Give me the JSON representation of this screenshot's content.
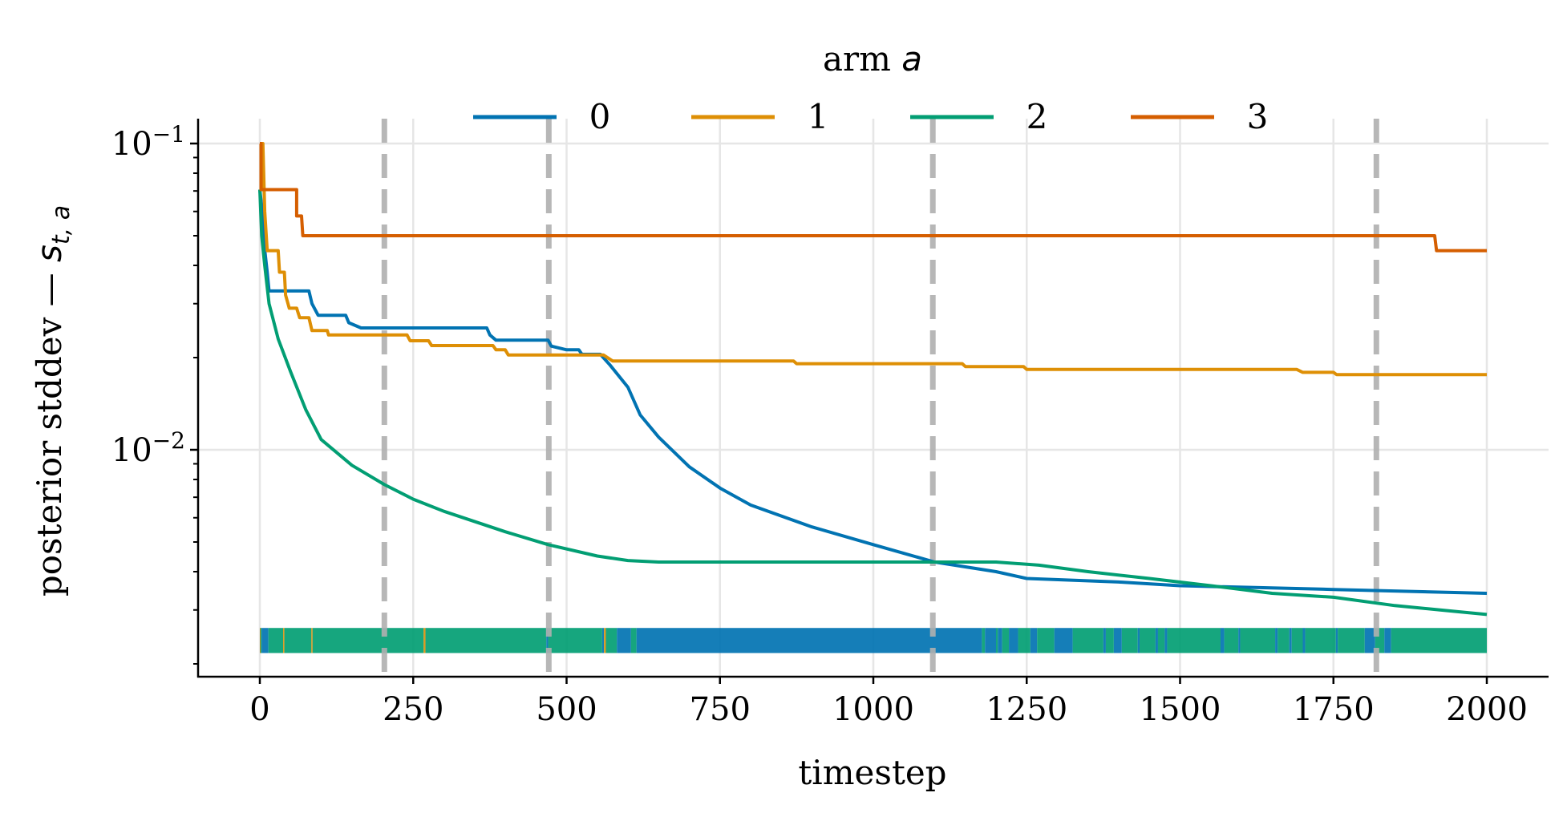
{
  "chart_data": {
    "type": "line",
    "title": "",
    "xlabel": "timestep",
    "ylabel": {
      "text": "posterior stddev — ",
      "symbol": "s",
      "subscript": "t, a"
    },
    "yscale": "log",
    "xlim": [
      -100,
      2100
    ],
    "ylim": [
      0.00183,
      0.12
    ],
    "grid": true,
    "x_ticks": [
      0,
      250,
      500,
      750,
      1000,
      1250,
      1500,
      1750,
      2000
    ],
    "x_tick_labels": [
      "0",
      "250",
      "500",
      "750",
      "1000",
      "1250",
      "1500",
      "1750",
      "2000"
    ],
    "y_ticks": [
      {
        "value": 0.1,
        "base": "10",
        "exp": "−1"
      },
      {
        "value": 0.01,
        "base": "10",
        "exp": "−2"
      }
    ],
    "legend": {
      "title": "arm",
      "title_symbol": "a",
      "placement": "top-center",
      "columns": 4
    },
    "series": [
      {
        "name": "0",
        "color": "#0173b2",
        "points": [
          [
            0,
            0.0707
          ],
          [
            5,
            0.0577
          ],
          [
            8,
            0.045
          ],
          [
            12,
            0.038
          ],
          [
            15,
            0.033
          ],
          [
            80,
            0.033
          ],
          [
            85,
            0.03
          ],
          [
            95,
            0.0275
          ],
          [
            140,
            0.0275
          ],
          [
            145,
            0.026
          ],
          [
            165,
            0.025
          ],
          [
            370,
            0.025
          ],
          [
            375,
            0.0237
          ],
          [
            385,
            0.0228
          ],
          [
            470,
            0.0228
          ],
          [
            475,
            0.0218
          ],
          [
            500,
            0.0212
          ],
          [
            520,
            0.0212
          ],
          [
            525,
            0.0205
          ],
          [
            555,
            0.0205
          ],
          [
            570,
            0.019
          ],
          [
            600,
            0.016
          ],
          [
            620,
            0.013
          ],
          [
            650,
            0.011
          ],
          [
            700,
            0.0088
          ],
          [
            750,
            0.0075
          ],
          [
            800,
            0.0066
          ],
          [
            900,
            0.0056
          ],
          [
            1000,
            0.0049
          ],
          [
            1100,
            0.0043
          ],
          [
            1200,
            0.004
          ],
          [
            1250,
            0.0038
          ],
          [
            1400,
            0.0037
          ],
          [
            1500,
            0.0036
          ],
          [
            1750,
            0.0035
          ],
          [
            2000,
            0.0034
          ]
        ]
      },
      {
        "name": "1",
        "color": "#de8f05",
        "points": [
          [
            0,
            0.1
          ],
          [
            5,
            0.1
          ],
          [
            8,
            0.06
          ],
          [
            12,
            0.0447
          ],
          [
            30,
            0.0447
          ],
          [
            32,
            0.038
          ],
          [
            40,
            0.038
          ],
          [
            42,
            0.032
          ],
          [
            48,
            0.029
          ],
          [
            60,
            0.029
          ],
          [
            65,
            0.027
          ],
          [
            80,
            0.027
          ],
          [
            85,
            0.0245
          ],
          [
            110,
            0.0245
          ],
          [
            112,
            0.0237
          ],
          [
            240,
            0.0237
          ],
          [
            245,
            0.0227
          ],
          [
            275,
            0.0227
          ],
          [
            280,
            0.0219
          ],
          [
            380,
            0.0219
          ],
          [
            385,
            0.0212
          ],
          [
            400,
            0.0212
          ],
          [
            405,
            0.0204
          ],
          [
            560,
            0.0204
          ],
          [
            575,
            0.0195
          ],
          [
            870,
            0.0195
          ],
          [
            875,
            0.0191
          ],
          [
            1145,
            0.0191
          ],
          [
            1150,
            0.0187
          ],
          [
            1245,
            0.0187
          ],
          [
            1250,
            0.0183
          ],
          [
            1690,
            0.0183
          ],
          [
            1700,
            0.0179
          ],
          [
            1750,
            0.0179
          ],
          [
            1755,
            0.0176
          ],
          [
            2000,
            0.0176
          ]
        ]
      },
      {
        "name": "2",
        "color": "#029e73",
        "points": [
          [
            0,
            0.0707
          ],
          [
            3,
            0.05
          ],
          [
            8,
            0.04
          ],
          [
            15,
            0.03
          ],
          [
            30,
            0.023
          ],
          [
            50,
            0.018
          ],
          [
            75,
            0.0135
          ],
          [
            100,
            0.0108
          ],
          [
            150,
            0.0089
          ],
          [
            203,
            0.0077
          ],
          [
            250,
            0.0069
          ],
          [
            300,
            0.0063
          ],
          [
            400,
            0.0054
          ],
          [
            470,
            0.0049
          ],
          [
            550,
            0.0045
          ],
          [
            600,
            0.00435
          ],
          [
            650,
            0.0043
          ],
          [
            1200,
            0.0043
          ],
          [
            1270,
            0.0042
          ],
          [
            1350,
            0.004
          ],
          [
            1450,
            0.0038
          ],
          [
            1550,
            0.0036
          ],
          [
            1650,
            0.0034
          ],
          [
            1750,
            0.0033
          ],
          [
            1850,
            0.0031
          ],
          [
            2000,
            0.0029
          ]
        ]
      },
      {
        "name": "3",
        "color": "#d55e00",
        "points": [
          [
            0,
            0.1
          ],
          [
            2,
            0.1
          ],
          [
            2,
            0.0707
          ],
          [
            60,
            0.0707
          ],
          [
            60,
            0.058
          ],
          [
            68,
            0.058
          ],
          [
            70,
            0.05
          ],
          [
            1915,
            0.05
          ],
          [
            1918,
            0.0447
          ],
          [
            2000,
            0.0447
          ]
        ]
      }
    ],
    "vlines": {
      "color": "#b0b0b0",
      "style": "dashed",
      "x": [
        203,
        471,
        1097,
        1820
      ]
    },
    "rug": {
      "y_range": [
        0.00217,
        0.00262
      ],
      "segments": [
        [
          0,
          1,
          1
        ],
        [
          1,
          3,
          2
        ],
        [
          3,
          14,
          0
        ],
        [
          14,
          38,
          2
        ],
        [
          38,
          40,
          1
        ],
        [
          40,
          84,
          2
        ],
        [
          84,
          86,
          1
        ],
        [
          86,
          267,
          2
        ],
        [
          267,
          270,
          1
        ],
        [
          270,
          467,
          2
        ],
        [
          467,
          470,
          0
        ],
        [
          470,
          558,
          2
        ],
        [
          558,
          561,
          0
        ],
        [
          561,
          564,
          1
        ],
        [
          564,
          582,
          2
        ],
        [
          582,
          605,
          0
        ],
        [
          605,
          614,
          2
        ],
        [
          614,
          1177,
          0
        ],
        [
          1177,
          1182,
          2
        ],
        [
          1182,
          1200,
          0
        ],
        [
          1200,
          1203,
          2
        ],
        [
          1203,
          1210,
          0
        ],
        [
          1210,
          1221,
          2
        ],
        [
          1221,
          1236,
          0
        ],
        [
          1236,
          1256,
          2
        ],
        [
          1256,
          1267,
          0
        ],
        [
          1267,
          1295,
          2
        ],
        [
          1295,
          1325,
          0
        ],
        [
          1325,
          1375,
          2
        ],
        [
          1375,
          1379,
          0
        ],
        [
          1379,
          1392,
          2
        ],
        [
          1392,
          1405,
          0
        ],
        [
          1405,
          1431,
          2
        ],
        [
          1431,
          1434,
          0
        ],
        [
          1434,
          1460,
          2
        ],
        [
          1460,
          1464,
          0
        ],
        [
          1464,
          1475,
          2
        ],
        [
          1475,
          1479,
          0
        ],
        [
          1479,
          1566,
          2
        ],
        [
          1566,
          1572,
          0
        ],
        [
          1572,
          1595,
          2
        ],
        [
          1595,
          1598,
          0
        ],
        [
          1598,
          1655,
          2
        ],
        [
          1655,
          1659,
          0
        ],
        [
          1659,
          1678,
          2
        ],
        [
          1678,
          1682,
          0
        ],
        [
          1682,
          1700,
          2
        ],
        [
          1700,
          1704,
          0
        ],
        [
          1704,
          1754,
          2
        ],
        [
          1754,
          1757,
          0
        ],
        [
          1757,
          1801,
          2
        ],
        [
          1801,
          1818,
          0
        ],
        [
          1818,
          1833,
          2
        ],
        [
          1833,
          1844,
          0
        ],
        [
          1844,
          2000,
          2
        ]
      ]
    }
  }
}
